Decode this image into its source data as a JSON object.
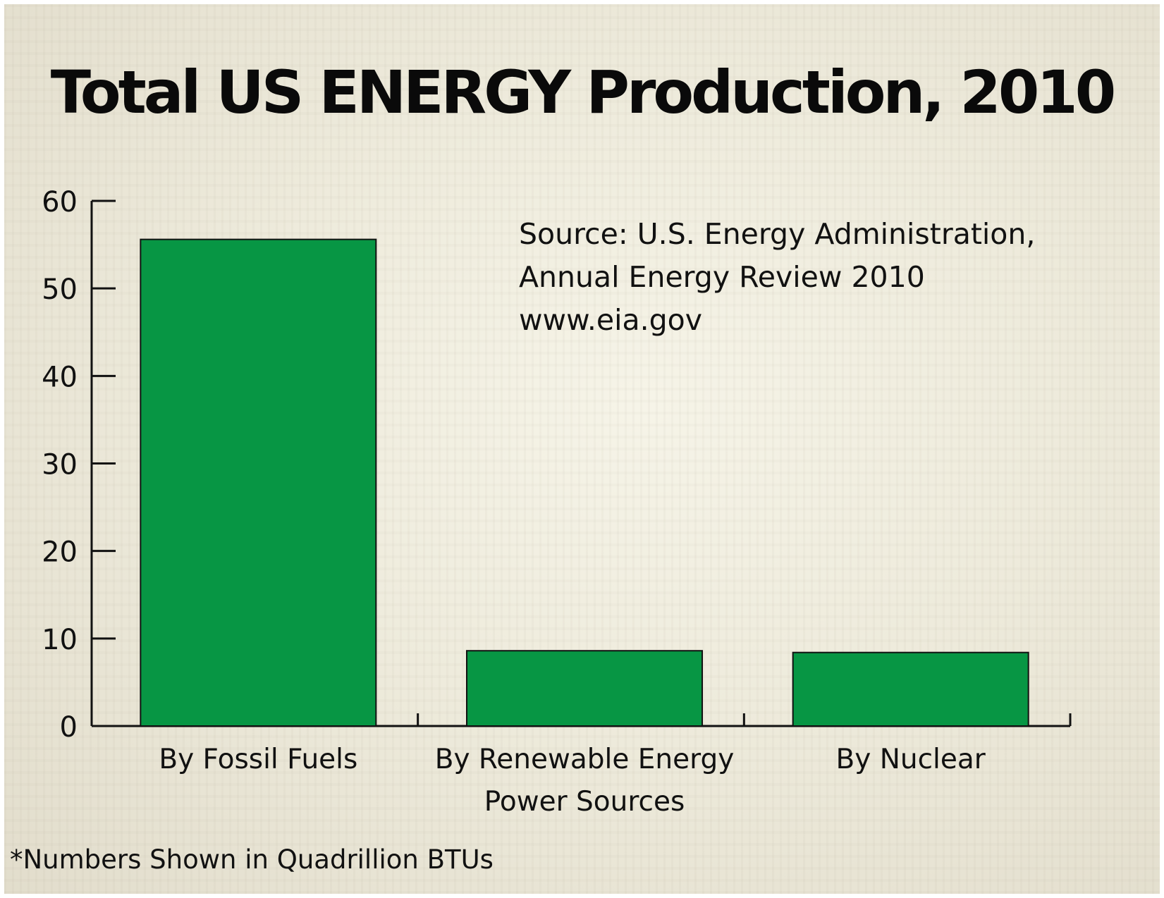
{
  "chart_data": {
    "type": "bar",
    "title": "Total US ENERGY Production, 2010",
    "categories": [
      [
        "By Fossil Fuels"
      ],
      [
        "By Renewable Energy",
        "Power Sources"
      ],
      [
        "By Nuclear"
      ]
    ],
    "values": [
      55.6,
      8.6,
      8.4
    ],
    "ylim": [
      0,
      60
    ],
    "yticks": [
      0,
      10,
      20,
      30,
      40,
      50,
      60
    ],
    "xlabel": "",
    "ylabel": "",
    "grid": false,
    "bar_color": "#079644",
    "source_lines": [
      "Source: U.S. Energy Administration,",
      "Annual Energy Review 2010",
      "www.eia.gov"
    ],
    "footnote": "*Numbers Shown in Quadrillion BTUs"
  }
}
